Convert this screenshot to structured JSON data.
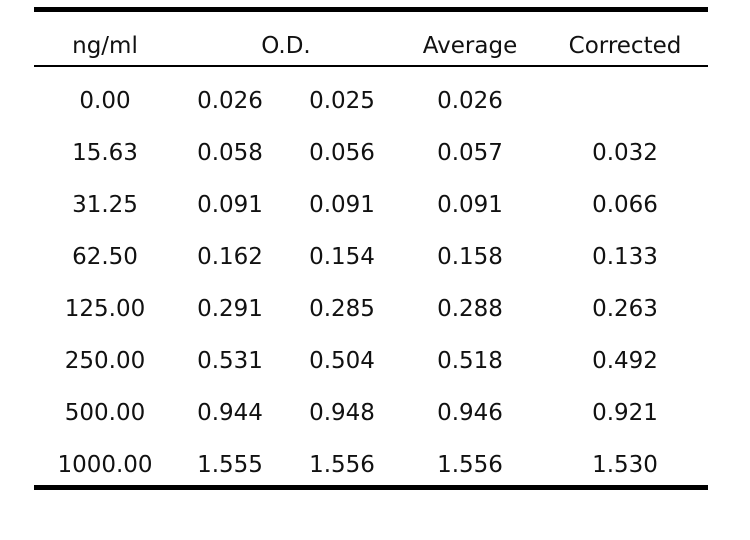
{
  "headers": {
    "conc": "ng/ml",
    "od": "O.D.",
    "average": "Average",
    "corrected": "Corrected"
  },
  "rows": [
    {
      "conc": "0.00",
      "od1": "0.026",
      "od2": "0.025",
      "average": "0.026",
      "corrected": ""
    },
    {
      "conc": "15.63",
      "od1": "0.058",
      "od2": "0.056",
      "average": "0.057",
      "corrected": "0.032"
    },
    {
      "conc": "31.25",
      "od1": "0.091",
      "od2": "0.091",
      "average": "0.091",
      "corrected": "0.066"
    },
    {
      "conc": "62.50",
      "od1": "0.162",
      "od2": "0.154",
      "average": "0.158",
      "corrected": "0.133"
    },
    {
      "conc": "125.00",
      "od1": "0.291",
      "od2": "0.285",
      "average": "0.288",
      "corrected": "0.263"
    },
    {
      "conc": "250.00",
      "od1": "0.531",
      "od2": "0.504",
      "average": "0.518",
      "corrected": "0.492"
    },
    {
      "conc": "500.00",
      "od1": "0.944",
      "od2": "0.948",
      "average": "0.946",
      "corrected": "0.921"
    },
    {
      "conc": "1000.00",
      "od1": "1.555",
      "od2": "1.556",
      "average": "1.556",
      "corrected": "1.530"
    }
  ]
}
